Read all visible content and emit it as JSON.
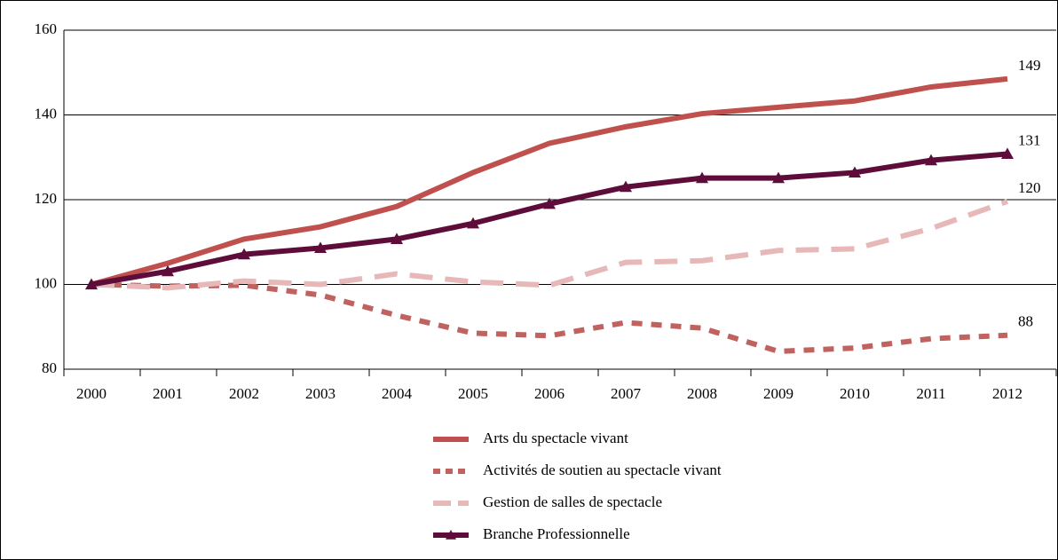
{
  "chart_data": {
    "type": "line",
    "categories": [
      "2000",
      "2001",
      "2002",
      "2003",
      "2004",
      "2005",
      "2006",
      "2007",
      "2008",
      "2009",
      "2010",
      "2011",
      "2012"
    ],
    "series": [
      {
        "name": "Arts du spectacle vivant",
        "color": "#c0504d",
        "dash": "solid",
        "marker": "none",
        "values": [
          100,
          105,
          110.7,
          113.6,
          118.4,
          126.4,
          133.3,
          137.2,
          140.3,
          141.8,
          143.3,
          146.6,
          148.5
        ],
        "value_labels": [
          null,
          null,
          null,
          null,
          null,
          null,
          null,
          null,
          null,
          null,
          null,
          null,
          "149"
        ]
      },
      {
        "name": "Activités de soutien au spectacle vivant",
        "color": "#c0625f",
        "dash": "short",
        "marker": "none",
        "values": [
          100,
          99.6,
          99.8,
          97.5,
          92.7,
          88.5,
          87.9,
          91,
          89.7,
          84.2,
          85,
          87.2,
          88
        ],
        "value_labels": [
          null,
          null,
          null,
          null,
          null,
          null,
          null,
          null,
          null,
          null,
          null,
          null,
          "88"
        ]
      },
      {
        "name": "Gestion de salles de spectacle",
        "color": "#e6b9b8",
        "dash": "long",
        "marker": "none",
        "values": [
          100,
          99.2,
          100.8,
          100,
          102.5,
          100.6,
          99.8,
          105.2,
          105.6,
          108,
          108.4,
          113.2,
          119.6
        ],
        "value_labels": [
          null,
          null,
          null,
          null,
          null,
          null,
          null,
          null,
          null,
          null,
          null,
          null,
          "120"
        ]
      },
      {
        "name": "Branche Professionnelle",
        "color": "#5e0c3a",
        "dash": "solid",
        "marker": "triangle",
        "values": [
          100,
          103.1,
          107.1,
          108.6,
          110.7,
          114.4,
          119,
          123,
          125.1,
          125.1,
          126.4,
          129.3,
          130.8
        ],
        "value_labels": [
          null,
          null,
          null,
          null,
          null,
          null,
          null,
          null,
          null,
          null,
          null,
          null,
          "131"
        ]
      }
    ],
    "ylim": [
      80,
      160
    ],
    "yticks": [
      80,
      100,
      120,
      140,
      160
    ],
    "grid": true,
    "legend": "bottom"
  }
}
